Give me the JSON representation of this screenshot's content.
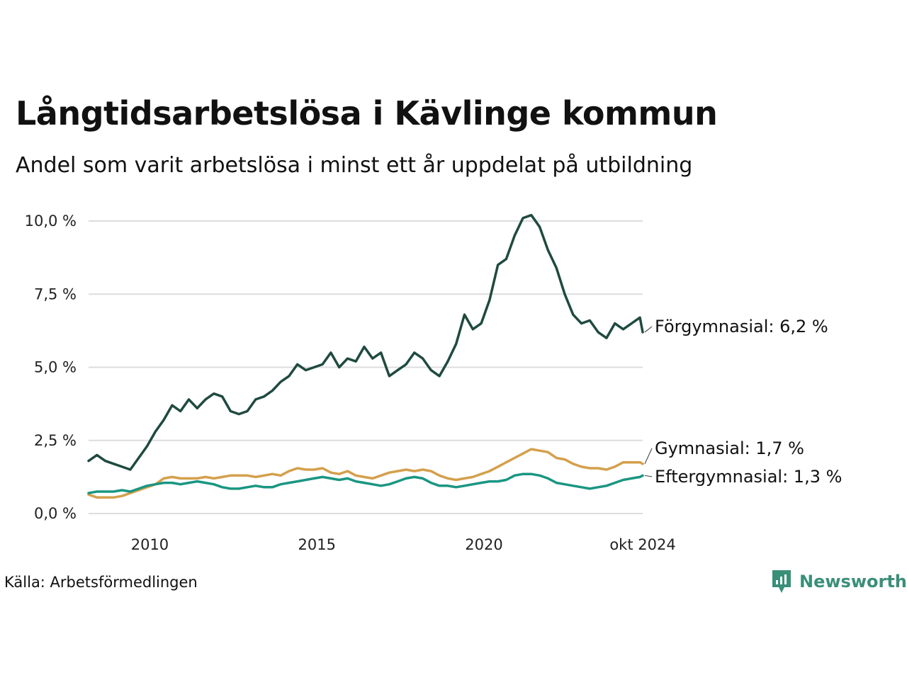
{
  "title": "Långtidsarbetslösa i Kävlinge kommun",
  "subtitle": "Andel som varit arbetslösa i minst ett år uppdelat på utbildning",
  "source": "Källa: Arbetsförmedlingen",
  "brand": {
    "name": "Newsworthy",
    "icon": "newsworthy-logo-icon",
    "color": "#3a8f79"
  },
  "chart_data": {
    "type": "line",
    "x_axis": {
      "range": [
        "2008-03",
        "2024-10"
      ],
      "ticks": [
        "2010",
        "2015",
        "2020",
        "okt 2024"
      ]
    },
    "y_axis": {
      "range": [
        0,
        10.5
      ],
      "ticks": [
        "0,0 %",
        "2,5 %",
        "5,0 %",
        "7,5 %",
        "10,0 %"
      ],
      "grid": true
    },
    "series": [
      {
        "name": "Förgymnasial",
        "end_label": "Förgymnasial: 6,2 %",
        "color": "#1f4a40",
        "points": [
          [
            "2008-03",
            1.8
          ],
          [
            "2008-06",
            2.0
          ],
          [
            "2008-09",
            1.8
          ],
          [
            "2008-12",
            1.7
          ],
          [
            "2009-03",
            1.6
          ],
          [
            "2009-06",
            1.5
          ],
          [
            "2009-09",
            1.9
          ],
          [
            "2009-12",
            2.3
          ],
          [
            "2010-03",
            2.8
          ],
          [
            "2010-06",
            3.2
          ],
          [
            "2010-09",
            3.7
          ],
          [
            "2010-12",
            3.5
          ],
          [
            "2011-03",
            3.9
          ],
          [
            "2011-06",
            3.6
          ],
          [
            "2011-09",
            3.9
          ],
          [
            "2011-12",
            4.1
          ],
          [
            "2012-03",
            4.0
          ],
          [
            "2012-06",
            3.5
          ],
          [
            "2012-09",
            3.4
          ],
          [
            "2012-12",
            3.5
          ],
          [
            "2013-03",
            3.9
          ],
          [
            "2013-06",
            4.0
          ],
          [
            "2013-09",
            4.2
          ],
          [
            "2013-12",
            4.5
          ],
          [
            "2014-03",
            4.7
          ],
          [
            "2014-06",
            5.1
          ],
          [
            "2014-09",
            4.9
          ],
          [
            "2014-12",
            5.0
          ],
          [
            "2015-03",
            5.1
          ],
          [
            "2015-06",
            5.5
          ],
          [
            "2015-09",
            5.0
          ],
          [
            "2015-12",
            5.3
          ],
          [
            "2016-03",
            5.2
          ],
          [
            "2016-06",
            5.7
          ],
          [
            "2016-09",
            5.3
          ],
          [
            "2016-12",
            5.5
          ],
          [
            "2017-03",
            4.7
          ],
          [
            "2017-06",
            4.9
          ],
          [
            "2017-09",
            5.1
          ],
          [
            "2017-12",
            5.5
          ],
          [
            "2018-03",
            5.3
          ],
          [
            "2018-06",
            4.9
          ],
          [
            "2018-09",
            4.7
          ],
          [
            "2018-12",
            5.2
          ],
          [
            "2019-03",
            5.8
          ],
          [
            "2019-06",
            6.8
          ],
          [
            "2019-09",
            6.3
          ],
          [
            "2019-12",
            6.5
          ],
          [
            "2020-03",
            7.3
          ],
          [
            "2020-06",
            8.5
          ],
          [
            "2020-09",
            8.7
          ],
          [
            "2020-12",
            9.5
          ],
          [
            "2021-03",
            10.1
          ],
          [
            "2021-06",
            10.2
          ],
          [
            "2021-09",
            9.8
          ],
          [
            "2021-12",
            9.0
          ],
          [
            "2022-03",
            8.4
          ],
          [
            "2022-06",
            7.5
          ],
          [
            "2022-09",
            6.8
          ],
          [
            "2022-12",
            6.5
          ],
          [
            "2023-03",
            6.6
          ],
          [
            "2023-06",
            6.2
          ],
          [
            "2023-09",
            6.0
          ],
          [
            "2023-12",
            6.5
          ],
          [
            "2024-03",
            6.3
          ],
          [
            "2024-06",
            6.5
          ],
          [
            "2024-09",
            6.7
          ],
          [
            "2024-10",
            6.2
          ]
        ]
      },
      {
        "name": "Gymnasial",
        "end_label": "Gymnasial: 1,7 %",
        "color": "#d4a04c",
        "points": [
          [
            "2008-03",
            0.65
          ],
          [
            "2008-06",
            0.55
          ],
          [
            "2008-09",
            0.55
          ],
          [
            "2008-12",
            0.55
          ],
          [
            "2009-03",
            0.6
          ],
          [
            "2009-06",
            0.7
          ],
          [
            "2009-09",
            0.8
          ],
          [
            "2009-12",
            0.9
          ],
          [
            "2010-03",
            1.0
          ],
          [
            "2010-06",
            1.2
          ],
          [
            "2010-09",
            1.25
          ],
          [
            "2010-12",
            1.2
          ],
          [
            "2011-03",
            1.2
          ],
          [
            "2011-06",
            1.2
          ],
          [
            "2011-09",
            1.25
          ],
          [
            "2011-12",
            1.2
          ],
          [
            "2012-03",
            1.25
          ],
          [
            "2012-06",
            1.3
          ],
          [
            "2012-09",
            1.3
          ],
          [
            "2012-12",
            1.3
          ],
          [
            "2013-03",
            1.25
          ],
          [
            "2013-06",
            1.3
          ],
          [
            "2013-09",
            1.35
          ],
          [
            "2013-12",
            1.3
          ],
          [
            "2014-03",
            1.45
          ],
          [
            "2014-06",
            1.55
          ],
          [
            "2014-09",
            1.5
          ],
          [
            "2014-12",
            1.5
          ],
          [
            "2015-03",
            1.55
          ],
          [
            "2015-06",
            1.4
          ],
          [
            "2015-09",
            1.35
          ],
          [
            "2015-12",
            1.45
          ],
          [
            "2016-03",
            1.3
          ],
          [
            "2016-06",
            1.25
          ],
          [
            "2016-09",
            1.2
          ],
          [
            "2016-12",
            1.3
          ],
          [
            "2017-03",
            1.4
          ],
          [
            "2017-06",
            1.45
          ],
          [
            "2017-09",
            1.5
          ],
          [
            "2017-12",
            1.45
          ],
          [
            "2018-03",
            1.5
          ],
          [
            "2018-06",
            1.45
          ],
          [
            "2018-09",
            1.3
          ],
          [
            "2018-12",
            1.2
          ],
          [
            "2019-03",
            1.15
          ],
          [
            "2019-06",
            1.2
          ],
          [
            "2019-09",
            1.25
          ],
          [
            "2019-12",
            1.35
          ],
          [
            "2020-03",
            1.45
          ],
          [
            "2020-06",
            1.6
          ],
          [
            "2020-09",
            1.75
          ],
          [
            "2020-12",
            1.9
          ],
          [
            "2021-03",
            2.05
          ],
          [
            "2021-06",
            2.2
          ],
          [
            "2021-09",
            2.15
          ],
          [
            "2021-12",
            2.1
          ],
          [
            "2022-03",
            1.9
          ],
          [
            "2022-06",
            1.85
          ],
          [
            "2022-09",
            1.7
          ],
          [
            "2022-12",
            1.6
          ],
          [
            "2023-03",
            1.55
          ],
          [
            "2023-06",
            1.55
          ],
          [
            "2023-09",
            1.5
          ],
          [
            "2023-12",
            1.6
          ],
          [
            "2024-03",
            1.75
          ],
          [
            "2024-06",
            1.75
          ],
          [
            "2024-09",
            1.75
          ],
          [
            "2024-10",
            1.7
          ]
        ]
      },
      {
        "name": "Eftergymnasial",
        "end_label": "Eftergymnasial: 1,3 %",
        "color": "#1a9682",
        "points": [
          [
            "2008-03",
            0.7
          ],
          [
            "2008-06",
            0.75
          ],
          [
            "2008-09",
            0.75
          ],
          [
            "2008-12",
            0.75
          ],
          [
            "2009-03",
            0.8
          ],
          [
            "2009-06",
            0.75
          ],
          [
            "2009-09",
            0.85
          ],
          [
            "2009-12",
            0.95
          ],
          [
            "2010-03",
            1.0
          ],
          [
            "2010-06",
            1.05
          ],
          [
            "2010-09",
            1.05
          ],
          [
            "2010-12",
            1.0
          ],
          [
            "2011-03",
            1.05
          ],
          [
            "2011-06",
            1.1
          ],
          [
            "2011-09",
            1.05
          ],
          [
            "2011-12",
            1.0
          ],
          [
            "2012-03",
            0.9
          ],
          [
            "2012-06",
            0.85
          ],
          [
            "2012-09",
            0.85
          ],
          [
            "2012-12",
            0.9
          ],
          [
            "2013-03",
            0.95
          ],
          [
            "2013-06",
            0.9
          ],
          [
            "2013-09",
            0.9
          ],
          [
            "2013-12",
            1.0
          ],
          [
            "2014-03",
            1.05
          ],
          [
            "2014-06",
            1.1
          ],
          [
            "2014-09",
            1.15
          ],
          [
            "2014-12",
            1.2
          ],
          [
            "2015-03",
            1.25
          ],
          [
            "2015-06",
            1.2
          ],
          [
            "2015-09",
            1.15
          ],
          [
            "2015-12",
            1.2
          ],
          [
            "2016-03",
            1.1
          ],
          [
            "2016-06",
            1.05
          ],
          [
            "2016-09",
            1.0
          ],
          [
            "2016-12",
            0.95
          ],
          [
            "2017-03",
            1.0
          ],
          [
            "2017-06",
            1.1
          ],
          [
            "2017-09",
            1.2
          ],
          [
            "2017-12",
            1.25
          ],
          [
            "2018-03",
            1.2
          ],
          [
            "2018-06",
            1.05
          ],
          [
            "2018-09",
            0.95
          ],
          [
            "2018-12",
            0.95
          ],
          [
            "2019-03",
            0.9
          ],
          [
            "2019-06",
            0.95
          ],
          [
            "2019-09",
            1.0
          ],
          [
            "2019-12",
            1.05
          ],
          [
            "2020-03",
            1.1
          ],
          [
            "2020-06",
            1.1
          ],
          [
            "2020-09",
            1.15
          ],
          [
            "2020-12",
            1.3
          ],
          [
            "2021-03",
            1.35
          ],
          [
            "2021-06",
            1.35
          ],
          [
            "2021-09",
            1.3
          ],
          [
            "2021-12",
            1.2
          ],
          [
            "2022-03",
            1.05
          ],
          [
            "2022-06",
            1.0
          ],
          [
            "2022-09",
            0.95
          ],
          [
            "2022-12",
            0.9
          ],
          [
            "2023-03",
            0.85
          ],
          [
            "2023-06",
            0.9
          ],
          [
            "2023-09",
            0.95
          ],
          [
            "2023-12",
            1.05
          ],
          [
            "2024-03",
            1.15
          ],
          [
            "2024-06",
            1.2
          ],
          [
            "2024-09",
            1.25
          ],
          [
            "2024-10",
            1.3
          ]
        ]
      }
    ]
  }
}
